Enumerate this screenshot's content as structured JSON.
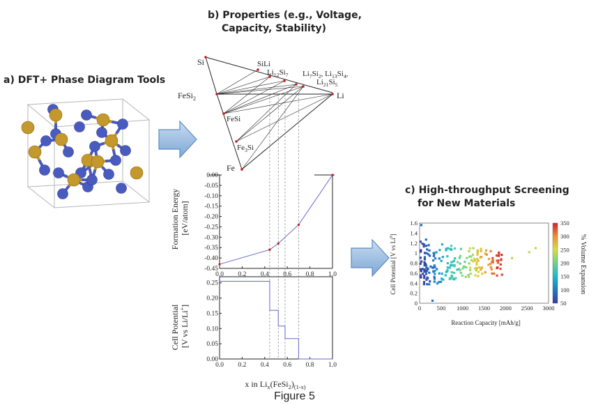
{
  "panels": {
    "a": {
      "title": "a)  DFT+ Phase Diagram Tools"
    },
    "b": {
      "title_line1": "b)  Properties (e.g., Voltage,",
      "title_line2": "Capacity, Stability)"
    },
    "c": {
      "title_line1": "c)  High-throughput Screening",
      "title_line2": "for New Materials"
    }
  },
  "caption": "Figure 5",
  "phase_diagram": {
    "vertices": {
      "top": "Si",
      "left": "FeSi",
      "left_sub": "2",
      "right": "Li",
      "bottom": "Fe"
    },
    "phases": [
      {
        "parts": [
          [
            "SiLi",
            false
          ]
        ]
      },
      {
        "parts": [
          [
            "Li",
            false
          ],
          [
            "12",
            true
          ],
          [
            "Si",
            false
          ],
          [
            "7",
            true
          ]
        ]
      },
      {
        "parts": [
          [
            "Li",
            false
          ],
          [
            "7",
            true
          ],
          [
            "Si",
            false
          ],
          [
            "2",
            true
          ],
          [
            ", Li",
            false
          ],
          [
            "13",
            true
          ],
          [
            "Si",
            false
          ],
          [
            "4",
            true
          ],
          [
            ",",
            false
          ]
        ]
      },
      {
        "parts": [
          [
            "Li",
            false
          ],
          [
            "21",
            true
          ],
          [
            "Si",
            false
          ],
          [
            "5",
            true
          ]
        ]
      },
      {
        "parts": [
          [
            "FeSi",
            false
          ]
        ]
      },
      {
        "parts": [
          [
            "Fe",
            false
          ],
          [
            "3",
            true
          ],
          [
            "Si",
            false
          ]
        ]
      }
    ]
  },
  "chart_data": [
    {
      "type": "line",
      "ylabel_line1": "Formation Energy",
      "ylabel_line2": "[eV/atom]",
      "ylim": [
        -0.45,
        0.0
      ],
      "xlim": [
        0.0,
        1.0
      ],
      "yticks": [
        "0.00",
        "-0.05",
        "-0.10",
        "-0.15",
        "-0.20",
        "-0.25",
        "-0.30",
        "-0.35",
        "-0.40",
        "-0.45"
      ],
      "ytick_values": [
        0.0,
        -0.05,
        -0.1,
        -0.15,
        -0.2,
        -0.25,
        -0.3,
        -0.35,
        -0.4,
        -0.45
      ],
      "xticks": [
        "0.0",
        "0.2",
        "0.4",
        "0.6",
        "0.8",
        "1.0"
      ],
      "xtick_values": [
        0.0,
        0.2,
        0.4,
        0.6,
        0.8,
        1.0
      ],
      "x": [
        0.0,
        0.444,
        0.52,
        0.7,
        1.0
      ],
      "y": [
        -0.43,
        -0.36,
        -0.33,
        -0.24,
        0.0
      ]
    },
    {
      "type": "line",
      "ylabel_line1": "Cell Potential",
      "ylabel_line2": "[V vs Li/Li",
      "ylabel_sup": "+",
      "ylabel_end": "]",
      "xlabel_parts": [
        [
          "x in Li",
          false
        ],
        [
          "x",
          true
        ],
        [
          "(FeSi",
          false
        ],
        [
          "2",
          true
        ],
        [
          ")",
          false
        ],
        [
          "(1-x)",
          true
        ]
      ],
      "ylim": [
        0.0,
        0.27
      ],
      "xlim": [
        0.0,
        1.0
      ],
      "yticks": [
        "0.25",
        "0.20",
        "0.15",
        "0.10",
        "0.05",
        "0.00"
      ],
      "ytick_values": [
        0.25,
        0.2,
        0.15,
        0.1,
        0.05,
        0.0
      ],
      "xticks": [
        "0.0",
        "0.2",
        "0.4",
        "0.6",
        "0.8",
        "1.0"
      ],
      "xtick_values": [
        0.0,
        0.2,
        0.4,
        0.6,
        0.8,
        1.0
      ],
      "steps": [
        {
          "x0": 0.0,
          "x1": 0.444,
          "y": 0.255
        },
        {
          "x0": 0.444,
          "x1": 0.52,
          "y": 0.16
        },
        {
          "x0": 0.52,
          "x1": 0.58,
          "y": 0.108
        },
        {
          "x0": 0.58,
          "x1": 0.7,
          "y": 0.067
        },
        {
          "x0": 0.7,
          "x1": 1.0,
          "y": 0.0
        }
      ]
    },
    {
      "type": "scatter",
      "ylabel": "Cell Potential [V vs Li",
      "ylabel_sup": "0",
      "ylabel_end": "]",
      "xlabel": "Reaction Capacity [mAh/g]",
      "colorbar_label": "% Volume Expansion",
      "xlim": [
        0,
        3000
      ],
      "ylim": [
        0,
        1.6
      ],
      "xticks": [
        "0",
        "500",
        "1000",
        "1500",
        "2000",
        "2500",
        "3000"
      ],
      "xtick_values": [
        0,
        500,
        1000,
        1500,
        2000,
        2500,
        3000
      ],
      "yticks": [
        "0",
        "0.2",
        "0.4",
        "0.6",
        "0.8",
        "1",
        "1.2",
        "1.4",
        "1.6"
      ],
      "ytick_values": [
        0,
        0.2,
        0.4,
        0.6,
        0.8,
        1.0,
        1.2,
        1.4,
        1.6
      ],
      "colorbar_ticks": [
        "350",
        "300",
        "250",
        "200",
        "150",
        "100",
        "50"
      ],
      "colorbar_values": [
        350,
        300,
        250,
        200,
        150,
        100,
        50
      ],
      "colorbar_range": [
        50,
        350
      ]
    }
  ],
  "colors": {
    "arrow_fill": "#9dbfe3",
    "arrow_stroke": "#5c8bc0",
    "atom_blue": "#4a5bc0",
    "atom_gold": "#c4982c",
    "plot_line": "#6468c8",
    "tie_point": "#c41818",
    "axis": "#222222"
  }
}
